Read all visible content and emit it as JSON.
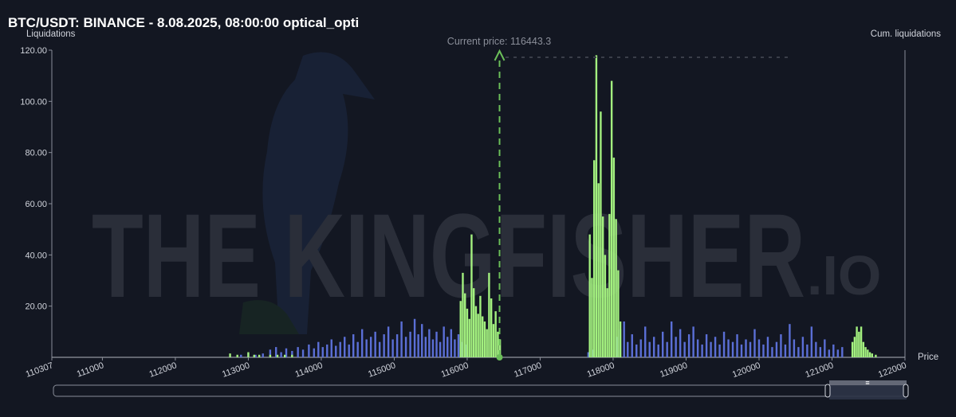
{
  "title": "BTC/USDT: BINANCE - 8.08.2025, 08:00:00 optical_opti",
  "current_price_label": "Current price: 116443.3",
  "watermark": {
    "main": "THE KINGFISHER",
    "suffix": ".IO"
  },
  "colors": {
    "background": "#131722",
    "long_bars": "#5b6fd6",
    "short_bars": "#a3f07f",
    "axis": "#8a8e99",
    "price_line": "#6bbf59"
  },
  "chart_data": {
    "type": "bar",
    "ylabel": "Liquidations",
    "y2label": "Cum. liquidations",
    "xlabel": "Price",
    "xlim": [
      110307,
      122000
    ],
    "ylim": [
      0,
      120
    ],
    "x_ticks": [
      "110307",
      "111000",
      "112000",
      "113000",
      "114000",
      "115000",
      "116000",
      "117000",
      "118000",
      "119000",
      "120000",
      "121000",
      "122000"
    ],
    "y_ticks": [
      "120.00",
      "100.00",
      "80.00",
      "60.00",
      "40.00",
      "20.00"
    ],
    "current_price": 116443.3,
    "series": [
      {
        "color": "blue",
        "points": [
          [
            112900,
            1
          ],
          [
            113000,
            1.5
          ],
          [
            113100,
            1
          ],
          [
            113200,
            1.5
          ],
          [
            113300,
            3
          ],
          [
            113380,
            4
          ],
          [
            113450,
            2
          ],
          [
            113520,
            3.5
          ],
          [
            113600,
            2.5
          ],
          [
            113680,
            4
          ],
          [
            113750,
            3
          ],
          [
            113830,
            5
          ],
          [
            113900,
            3.5
          ],
          [
            113960,
            6
          ],
          [
            114020,
            4
          ],
          [
            114080,
            5
          ],
          [
            114140,
            7
          ],
          [
            114200,
            4.5
          ],
          [
            114260,
            6
          ],
          [
            114320,
            8
          ],
          [
            114380,
            5
          ],
          [
            114440,
            9
          ],
          [
            114500,
            6
          ],
          [
            114560,
            11
          ],
          [
            114620,
            7
          ],
          [
            114680,
            8
          ],
          [
            114740,
            10
          ],
          [
            114800,
            6
          ],
          [
            114860,
            9
          ],
          [
            114920,
            12
          ],
          [
            114980,
            7
          ],
          [
            115040,
            9
          ],
          [
            115100,
            14
          ],
          [
            115160,
            8
          ],
          [
            115220,
            10
          ],
          [
            115280,
            15
          ],
          [
            115330,
            9
          ],
          [
            115380,
            13
          ],
          [
            115430,
            8
          ],
          [
            115480,
            11
          ],
          [
            115530,
            7
          ],
          [
            115580,
            10
          ],
          [
            115630,
            6
          ],
          [
            115680,
            12
          ],
          [
            115730,
            8
          ],
          [
            115780,
            11
          ],
          [
            115830,
            7
          ],
          [
            115880,
            9
          ],
          [
            115930,
            6
          ],
          [
            115980,
            5
          ],
          [
            117660,
            2
          ],
          [
            117720,
            3
          ],
          [
            118050,
            8
          ],
          [
            118100,
            11
          ],
          [
            118150,
            14
          ],
          [
            118200,
            6
          ],
          [
            118260,
            9
          ],
          [
            118320,
            5
          ],
          [
            118380,
            7
          ],
          [
            118440,
            12
          ],
          [
            118500,
            6
          ],
          [
            118560,
            8
          ],
          [
            118620,
            5
          ],
          [
            118680,
            10
          ],
          [
            118740,
            6
          ],
          [
            118800,
            14
          ],
          [
            118860,
            8
          ],
          [
            118920,
            11
          ],
          [
            118980,
            6
          ],
          [
            119040,
            9
          ],
          [
            119100,
            12
          ],
          [
            119160,
            7
          ],
          [
            119220,
            5
          ],
          [
            119280,
            9
          ],
          [
            119340,
            6
          ],
          [
            119400,
            8
          ],
          [
            119460,
            5
          ],
          [
            119520,
            10
          ],
          [
            119580,
            7
          ],
          [
            119640,
            6
          ],
          [
            119700,
            9
          ],
          [
            119760,
            5
          ],
          [
            119820,
            7
          ],
          [
            119880,
            6
          ],
          [
            119940,
            11
          ],
          [
            120000,
            7
          ],
          [
            120060,
            5
          ],
          [
            120120,
            8
          ],
          [
            120180,
            4
          ],
          [
            120240,
            6
          ],
          [
            120300,
            9
          ],
          [
            120360,
            5
          ],
          [
            120420,
            13
          ],
          [
            120480,
            7
          ],
          [
            120540,
            4
          ],
          [
            120600,
            8
          ],
          [
            120660,
            5
          ],
          [
            120720,
            12
          ],
          [
            120780,
            6
          ],
          [
            120840,
            4
          ],
          [
            120900,
            7
          ],
          [
            120960,
            3
          ],
          [
            121020,
            5
          ],
          [
            121080,
            3
          ],
          [
            121140,
            4
          ]
        ]
      },
      {
        "color": "green",
        "points": [
          [
            112750,
            1.5
          ],
          [
            112850,
            1
          ],
          [
            113000,
            2
          ],
          [
            113080,
            1
          ],
          [
            113150,
            1
          ],
          [
            113300,
            1
          ],
          [
            113400,
            1
          ],
          [
            113500,
            1
          ],
          [
            113600,
            1
          ],
          [
            115910,
            22
          ],
          [
            115940,
            33
          ],
          [
            115970,
            25
          ],
          [
            116000,
            19
          ],
          [
            116030,
            15
          ],
          [
            116060,
            48
          ],
          [
            116090,
            27
          ],
          [
            116120,
            20
          ],
          [
            116150,
            17
          ],
          [
            116180,
            24
          ],
          [
            116210,
            16
          ],
          [
            116240,
            14
          ],
          [
            116270,
            11
          ],
          [
            116300,
            33
          ],
          [
            116330,
            23
          ],
          [
            116360,
            13
          ],
          [
            116390,
            18
          ],
          [
            116420,
            10
          ],
          [
            116450,
            7
          ],
          [
            117680,
            48
          ],
          [
            117710,
            31
          ],
          [
            117740,
            77
          ],
          [
            117770,
            118
          ],
          [
            117800,
            68
          ],
          [
            117830,
            96
          ],
          [
            117860,
            55
          ],
          [
            117890,
            40
          ],
          [
            117920,
            27
          ],
          [
            117950,
            56
          ],
          [
            117980,
            108
          ],
          [
            118010,
            78
          ],
          [
            118040,
            54
          ],
          [
            118070,
            34
          ],
          [
            118100,
            14
          ],
          [
            121280,
            6
          ],
          [
            121310,
            8
          ],
          [
            121340,
            12
          ],
          [
            121370,
            10
          ],
          [
            121400,
            12
          ],
          [
            121430,
            6
          ],
          [
            121460,
            4
          ],
          [
            121490,
            3
          ],
          [
            121520,
            2
          ],
          [
            121550,
            1.5
          ],
          [
            121600,
            1
          ]
        ]
      }
    ]
  }
}
